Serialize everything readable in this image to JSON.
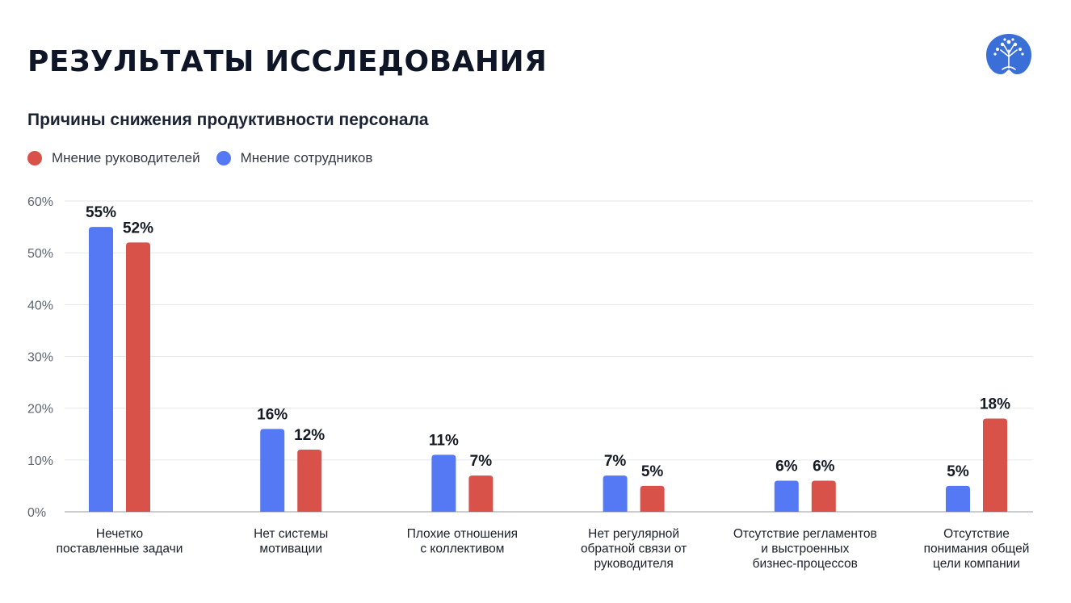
{
  "page": {
    "title": "РЕЗУЛЬТАТЫ ИССЛЕДОВАНИЯ",
    "logo_icon": "tree-in-circle-icon",
    "brand_color": "#3a6fd8"
  },
  "chart_data": {
    "type": "bar",
    "title": "Причины снижения продуктивности персонала",
    "legend_position": "top-left",
    "grid": true,
    "ylim": [
      0,
      60
    ],
    "yticks": [
      0,
      10,
      20,
      30,
      40,
      50,
      60
    ],
    "ytick_labels": [
      "0%",
      "10%",
      "20%",
      "30%",
      "40%",
      "50%",
      "60%"
    ],
    "legend": [
      {
        "name": "Мнение руководителей",
        "color": "#d9524a"
      },
      {
        "name": "Мнение сотрудников",
        "color": "#5579f5"
      }
    ],
    "categories": [
      [
        "Нечетко",
        "поставленные задачи"
      ],
      [
        "Нет системы",
        "мотивации"
      ],
      [
        "Плохие отношения",
        "с коллективом"
      ],
      [
        "Нет регулярной",
        "обратной связи от",
        "руководителя"
      ],
      [
        "Отсутствие регламентов",
        "и выстроенных",
        "бизнес-процессов"
      ],
      [
        "Отсутствие",
        "понимания общей",
        "цели компании"
      ]
    ],
    "series": [
      {
        "name": "Мнение сотрудников",
        "color": "#5579f5",
        "values": [
          55,
          16,
          11,
          7,
          6,
          5
        ],
        "labels": [
          "55%",
          "16%",
          "11%",
          "7%",
          "6%",
          "5%"
        ]
      },
      {
        "name": "Мнение руководителей",
        "color": "#d9524a",
        "values": [
          52,
          12,
          7,
          5,
          6,
          18
        ],
        "labels": [
          "52%",
          "12%",
          "7%",
          "5%",
          "6%",
          "18%"
        ]
      }
    ]
  }
}
